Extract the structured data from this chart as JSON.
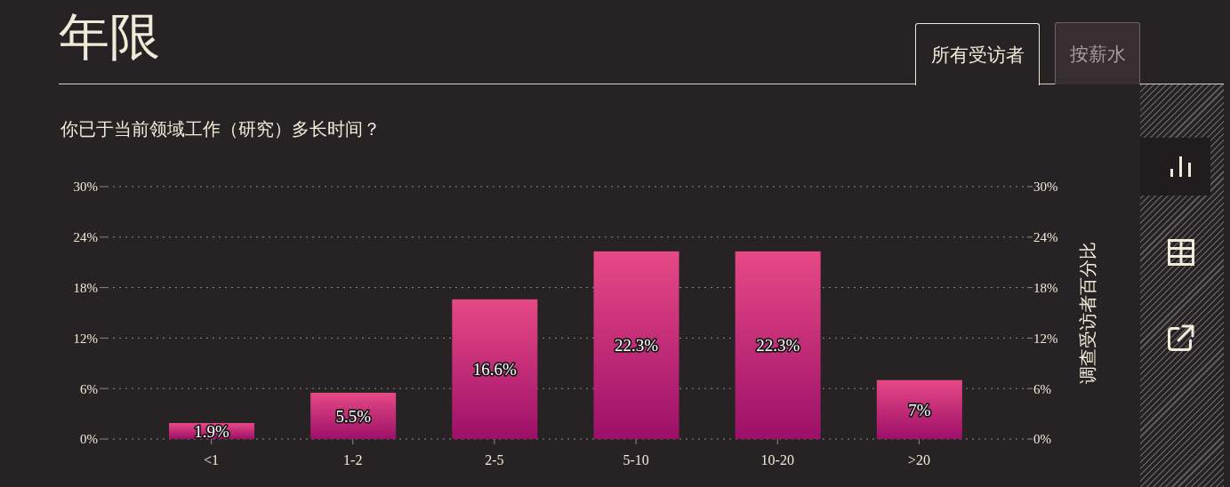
{
  "chart_data": {
    "type": "bar",
    "title": "年限",
    "subtitle": "你已于当前领域工作（研究）多长时间？",
    "y2label": "调查受访者百分比",
    "annotations": [
      "所有受访者",
      "按薪水"
    ],
    "categories": [
      "<1",
      "1-2",
      "2-5",
      "5-10",
      "10-20",
      ">20"
    ],
    "values": [
      1.9,
      5.5,
      16.6,
      22.3,
      22.3,
      7
    ],
    "value_labels": [
      "1.9%",
      "5.5%",
      "16.6%",
      "22.3%",
      "22.3%",
      "7%"
    ],
    "color": "#c42c78",
    "ylim": [
      0,
      30
    ],
    "yticks": [
      {
        "value": 0,
        "label": "0%"
      },
      {
        "value": 6,
        "label": "6%"
      },
      {
        "value": 12,
        "label": "12%"
      },
      {
        "value": 18,
        "label": "18%"
      },
      {
        "value": 24,
        "label": "24%"
      },
      {
        "value": 30,
        "label": "30%"
      }
    ],
    "y2lim": [
      0,
      30
    ],
    "y2ticks": [
      {
        "value": 0,
        "label": "0%"
      },
      {
        "value": 6,
        "label": "6%"
      },
      {
        "value": 12,
        "label": "12%"
      },
      {
        "value": 18,
        "label": "18%"
      },
      {
        "value": 24,
        "label": "24%"
      },
      {
        "value": 30,
        "label": "30%"
      }
    ],
    "grid": "y"
  }
}
